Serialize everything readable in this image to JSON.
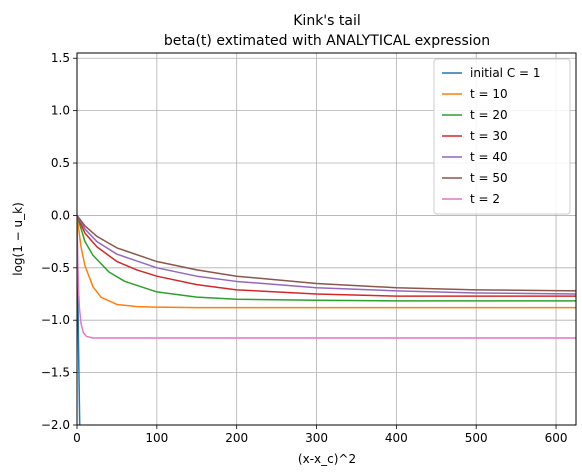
{
  "chart_data": {
    "type": "line",
    "title": "Kink's tail",
    "subtitle": "beta(t) extimated with ANALYTICAL expression",
    "xlabel": "(x-x_c)^2",
    "ylabel": "log(1 − u_k)",
    "xlim": [
      0,
      625
    ],
    "ylim": [
      -2.0,
      1.55
    ],
    "xticks": [
      "0",
      "100",
      "200",
      "300",
      "400",
      "500",
      "600"
    ],
    "yticks": [
      "−2.0",
      "−1.5",
      "−1.0",
      "−0.5",
      "0.0",
      "0.5",
      "1.0",
      "1.5"
    ],
    "grid": true,
    "legend_position": "top-right",
    "series": [
      {
        "name": "initial C = 1",
        "color": "#1f77b4",
        "x": [
          0,
          0.5,
          1,
          2,
          3,
          4
        ],
        "y": [
          0.0,
          -0.35,
          -0.7,
          -1.3,
          -1.8,
          -2.3
        ]
      },
      {
        "name": "t = 10",
        "color": "#ff7f0e",
        "x": [
          0,
          5,
          10,
          20,
          30,
          50,
          75,
          100,
          150,
          200,
          300,
          400,
          500,
          625
        ],
        "y": [
          0.0,
          -0.3,
          -0.48,
          -0.68,
          -0.78,
          -0.85,
          -0.87,
          -0.875,
          -0.88,
          -0.88,
          -0.88,
          -0.88,
          -0.88,
          -0.88
        ]
      },
      {
        "name": "t = 20",
        "color": "#2ca02c",
        "x": [
          0,
          10,
          20,
          40,
          60,
          100,
          150,
          200,
          300,
          400,
          500,
          625
        ],
        "y": [
          0.0,
          -0.25,
          -0.38,
          -0.54,
          -0.63,
          -0.73,
          -0.78,
          -0.8,
          -0.81,
          -0.815,
          -0.815,
          -0.815
        ]
      },
      {
        "name": "t = 30",
        "color": "#d62728",
        "x": [
          0,
          10,
          25,
          50,
          75,
          100,
          150,
          200,
          300,
          400,
          500,
          625
        ],
        "y": [
          0.0,
          -0.17,
          -0.3,
          -0.44,
          -0.52,
          -0.58,
          -0.66,
          -0.71,
          -0.75,
          -0.77,
          -0.77,
          -0.77
        ]
      },
      {
        "name": "t = 40",
        "color": "#9467bd",
        "x": [
          0,
          10,
          25,
          50,
          100,
          150,
          200,
          300,
          400,
          500,
          625
        ],
        "y": [
          0.0,
          -0.13,
          -0.25,
          -0.37,
          -0.5,
          -0.58,
          -0.63,
          -0.69,
          -0.72,
          -0.74,
          -0.75
        ]
      },
      {
        "name": "t = 50",
        "color": "#8c564b",
        "x": [
          0,
          10,
          25,
          50,
          100,
          150,
          200,
          300,
          400,
          500,
          625
        ],
        "y": [
          0.0,
          -0.1,
          -0.2,
          -0.31,
          -0.44,
          -0.52,
          -0.58,
          -0.65,
          -0.69,
          -0.71,
          -0.72
        ]
      },
      {
        "name": "t = 2",
        "color": "#e377c2",
        "x": [
          0,
          1,
          2,
          3,
          5,
          8,
          12,
          20,
          30,
          50,
          625
        ],
        "y": [
          0.0,
          -0.45,
          -0.72,
          -0.88,
          -1.03,
          -1.12,
          -1.155,
          -1.17,
          -1.17,
          -1.17,
          -1.17
        ]
      }
    ]
  }
}
